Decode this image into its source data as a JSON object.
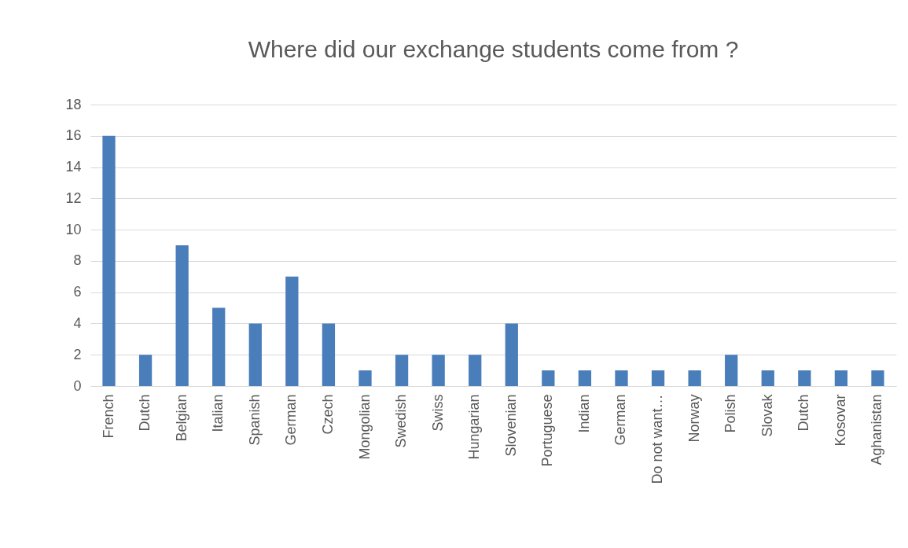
{
  "chart_data": {
    "type": "bar",
    "title": "Where did our exchange students come from ?",
    "categories": [
      "French",
      "Dutch",
      "Belgian",
      "Italian",
      "Spanish",
      "German",
      "Czech",
      "Mongolian",
      "Swedish",
      "Swiss",
      "Hungarian",
      "Slovenian",
      "Portuguese",
      "Indian",
      "German",
      "Do not want…",
      "Norway",
      "Polish",
      "Slovak",
      "Dutch",
      "Kosovar",
      "Aghanistan"
    ],
    "values": [
      16,
      2,
      9,
      5,
      4,
      7,
      4,
      1,
      2,
      2,
      2,
      4,
      1,
      1,
      1,
      1,
      1,
      2,
      1,
      1,
      1,
      1
    ],
    "color": "#4a7ebb",
    "ylim": [
      0,
      18
    ],
    "yticks": [
      0,
      2,
      4,
      6,
      8,
      10,
      12,
      14,
      16,
      18
    ],
    "grid": "y"
  }
}
